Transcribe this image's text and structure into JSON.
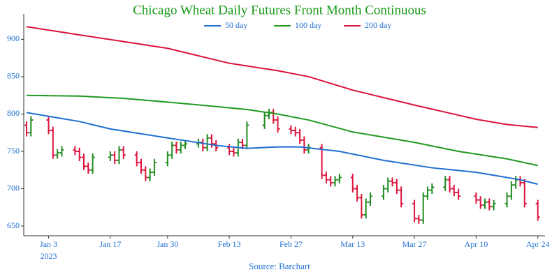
{
  "chart_data": {
    "type": "ohlc",
    "title": "Chicago Wheat Daily Futures Front Month Continuous",
    "source": "Source: Barchart",
    "x": [
      "2022-12-29",
      "2022-12-30",
      "2023-01-03",
      "2023-01-04",
      "2023-01-05",
      "2023-01-06",
      "2023-01-09",
      "2023-01-10",
      "2023-01-11",
      "2023-01-12",
      "2023-01-13",
      "2023-01-17",
      "2023-01-18",
      "2023-01-19",
      "2023-01-20",
      "2023-01-23",
      "2023-01-24",
      "2023-01-25",
      "2023-01-26",
      "2023-01-27",
      "2023-01-30",
      "2023-01-31",
      "2023-02-01",
      "2023-02-02",
      "2023-02-03",
      "2023-02-06",
      "2023-02-07",
      "2023-02-08",
      "2023-02-09",
      "2023-02-10",
      "2023-02-13",
      "2023-02-14",
      "2023-02-15",
      "2023-02-16",
      "2023-02-17",
      "2023-02-21",
      "2023-02-22",
      "2023-02-23",
      "2023-02-24",
      "2023-02-27",
      "2023-02-28",
      "2023-03-01",
      "2023-03-02",
      "2023-03-03",
      "2023-03-06",
      "2023-03-07",
      "2023-03-08",
      "2023-03-09",
      "2023-03-10",
      "2023-03-13",
      "2023-03-14",
      "2023-03-15",
      "2023-03-16",
      "2023-03-17",
      "2023-03-20",
      "2023-03-21",
      "2023-03-22",
      "2023-03-23",
      "2023-03-24",
      "2023-03-27",
      "2023-03-28",
      "2023-03-29",
      "2023-03-30",
      "2023-03-31",
      "2023-04-03",
      "2023-04-04",
      "2023-04-05",
      "2023-04-06",
      "2023-04-10",
      "2023-04-11",
      "2023-04-12",
      "2023-04-13",
      "2023-04-14",
      "2023-04-17",
      "2023-04-18",
      "2023-04-19",
      "2023-04-20",
      "2023-04-21",
      "2023-04-24"
    ],
    "open": [
      785,
      775,
      792,
      778,
      745,
      748,
      752,
      750,
      742,
      730,
      725,
      742,
      745,
      738,
      752,
      745,
      735,
      725,
      715,
      722,
      735,
      745,
      758,
      752,
      758,
      760,
      762,
      755,
      768,
      760,
      755,
      750,
      748,
      762,
      758,
      785,
      798,
      802,
      792,
      780,
      778,
      775,
      765,
      752,
      755,
      718,
      712,
      708,
      712,
      715,
      700,
      688,
      665,
      682,
      690,
      700,
      710,
      708,
      698,
      680,
      660,
      658,
      690,
      698,
      702,
      712,
      700,
      695,
      690,
      685,
      678,
      682,
      676,
      680,
      690,
      705,
      712,
      708,
      680
    ],
    "high": [
      790,
      797,
      797,
      783,
      753,
      757,
      757,
      755,
      747,
      735,
      747,
      750,
      750,
      757,
      757,
      750,
      740,
      730,
      727,
      740,
      750,
      763,
      763,
      763,
      765,
      767,
      767,
      773,
      773,
      765,
      760,
      755,
      767,
      767,
      790,
      803,
      807,
      807,
      797,
      785,
      783,
      780,
      770,
      760,
      760,
      723,
      717,
      717,
      720,
      720,
      705,
      693,
      687,
      695,
      705,
      715,
      715,
      713,
      703,
      685,
      665,
      695,
      703,
      707,
      717,
      717,
      705,
      700,
      695,
      690,
      687,
      687,
      685,
      695,
      710,
      717,
      717,
      713,
      685
    ],
    "low": [
      770,
      770,
      773,
      740,
      740,
      743,
      745,
      737,
      725,
      720,
      720,
      737,
      733,
      733,
      740,
      730,
      720,
      710,
      710,
      717,
      730,
      740,
      747,
      747,
      753,
      755,
      750,
      750,
      755,
      750,
      745,
      743,
      743,
      753,
      753,
      780,
      793,
      787,
      775,
      773,
      770,
      760,
      747,
      747,
      713,
      707,
      703,
      703,
      707,
      695,
      683,
      660,
      660,
      677,
      685,
      695,
      703,
      693,
      675,
      655,
      653,
      653,
      685,
      693,
      697,
      695,
      690,
      685,
      680,
      673,
      673,
      671,
      671,
      675,
      685,
      700,
      703,
      675,
      657
    ],
    "close": [
      775,
      792,
      778,
      745,
      748,
      752,
      750,
      742,
      730,
      725,
      742,
      745,
      738,
      752,
      745,
      735,
      725,
      715,
      722,
      735,
      745,
      758,
      752,
      758,
      760,
      762,
      755,
      768,
      760,
      755,
      750,
      748,
      762,
      758,
      785,
      798,
      802,
      792,
      780,
      778,
      775,
      765,
      752,
      755,
      718,
      712,
      708,
      712,
      715,
      700,
      688,
      665,
      682,
      690,
      700,
      710,
      708,
      698,
      680,
      660,
      658,
      690,
      698,
      702,
      712,
      700,
      695,
      690,
      685,
      678,
      682,
      676,
      680,
      690,
      705,
      712,
      708,
      680,
      662
    ],
    "up_color": "#228b22",
    "down_color": "#dc143c",
    "series": [
      {
        "name": "50 day",
        "color": "#1f6fd1",
        "x": [
          "2022-12-29",
          "2023-01-10",
          "2023-01-17",
          "2023-01-30",
          "2023-02-10",
          "2023-02-17",
          "2023-02-24",
          "2023-03-01",
          "2023-03-10",
          "2023-03-20",
          "2023-03-31",
          "2023-04-10",
          "2023-04-20",
          "2023-04-24"
        ],
        "values": [
          802,
          790,
          780,
          768,
          758,
          754,
          756,
          756,
          750,
          738,
          728,
          722,
          712,
          706
        ]
      },
      {
        "name": "100 day",
        "color": "#1f9a1f",
        "x": [
          "2022-12-29",
          "2023-01-10",
          "2023-01-20",
          "2023-01-30",
          "2023-02-10",
          "2023-02-17",
          "2023-02-24",
          "2023-03-03",
          "2023-03-13",
          "2023-03-27",
          "2023-04-06",
          "2023-04-17",
          "2023-04-24"
        ],
        "values": [
          825,
          824,
          821,
          816,
          810,
          806,
          800,
          792,
          776,
          762,
          750,
          740,
          731
        ]
      },
      {
        "name": "200 day",
        "color": "#dc143c",
        "x": [
          "2022-12-29",
          "2023-01-10",
          "2023-01-30",
          "2023-02-13",
          "2023-02-24",
          "2023-03-03",
          "2023-03-13",
          "2023-03-27",
          "2023-04-10",
          "2023-04-17",
          "2023-04-24"
        ],
        "values": [
          917,
          906,
          888,
          868,
          858,
          850,
          832,
          812,
          793,
          786,
          782
        ]
      }
    ],
    "xlim": [
      "2022-12-29",
      "2023-04-25"
    ],
    "xticks": [
      {
        "value": "2023-01-03",
        "label": "Jan 3"
      },
      {
        "value": "2023-01-17",
        "label": "Jan 17"
      },
      {
        "value": "2023-01-30",
        "label": "Jan 30"
      },
      {
        "value": "2023-02-13",
        "label": "Feb 13"
      },
      {
        "value": "2023-02-27",
        "label": "Feb 27"
      },
      {
        "value": "2023-03-13",
        "label": "Mar 13"
      },
      {
        "value": "2023-03-27",
        "label": "Mar 27"
      },
      {
        "value": "2023-04-10",
        "label": "Apr 10"
      },
      {
        "value": "2023-04-24",
        "label": "Apr 24"
      }
    ],
    "x_year_label": "2023",
    "ylim": [
      637,
      934
    ],
    "yticks": [
      650,
      700,
      750,
      800,
      850,
      900
    ],
    "grid": false,
    "legend_position": "top"
  }
}
